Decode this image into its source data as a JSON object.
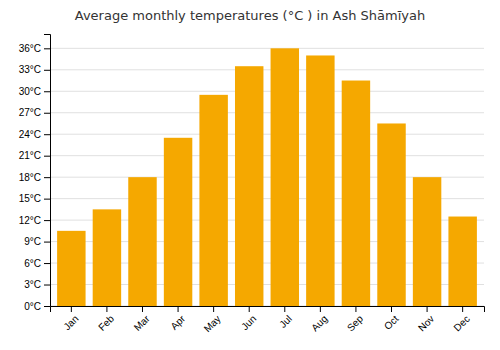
{
  "chart_data": {
    "type": "bar",
    "title": "Average monthly temperatures (°C ) in Ash Shāmīyah",
    "categories": [
      "Jan",
      "Feb",
      "Mar",
      "Apr",
      "May",
      "Jun",
      "Jul",
      "Aug",
      "Sep",
      "Oct",
      "Nov",
      "Dec"
    ],
    "values": [
      10.5,
      13.5,
      18.0,
      23.5,
      29.5,
      33.5,
      36.0,
      35.0,
      31.5,
      25.5,
      18.0,
      12.5
    ],
    "color": "#F5A800",
    "ylim": [
      0,
      38
    ],
    "yticks": [
      {
        "value": 0,
        "label": "0°C"
      },
      {
        "value": 3,
        "label": "3°C"
      },
      {
        "value": 6,
        "label": "6°C"
      },
      {
        "value": 9,
        "label": "9°C"
      },
      {
        "value": 12,
        "label": "12°C"
      },
      {
        "value": 15,
        "label": "15°C"
      },
      {
        "value": 18,
        "label": "18°C"
      },
      {
        "value": 21,
        "label": "21°C"
      },
      {
        "value": 24,
        "label": "24°C"
      },
      {
        "value": 27,
        "label": "27°C"
      },
      {
        "value": 30,
        "label": "30°C"
      },
      {
        "value": 33,
        "label": "33°C"
      },
      {
        "value": 36,
        "label": "36°C"
      }
    ],
    "grid": true
  }
}
